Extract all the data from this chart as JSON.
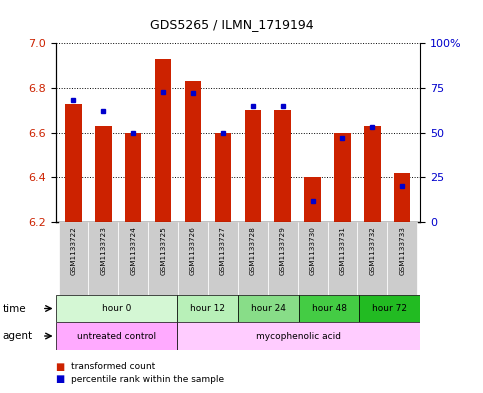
{
  "title": "GDS5265 / ILMN_1719194",
  "samples": [
    "GSM1133722",
    "GSM1133723",
    "GSM1133724",
    "GSM1133725",
    "GSM1133726",
    "GSM1133727",
    "GSM1133728",
    "GSM1133729",
    "GSM1133730",
    "GSM1133731",
    "GSM1133732",
    "GSM1133733"
  ],
  "red_values": [
    6.73,
    6.63,
    6.6,
    6.93,
    6.83,
    6.6,
    6.7,
    6.7,
    6.4,
    6.6,
    6.63,
    6.42
  ],
  "blue_percentiles": [
    68,
    62,
    50,
    73,
    72,
    50,
    65,
    65,
    12,
    47,
    53,
    20
  ],
  "y_min": 6.2,
  "y_max": 7.0,
  "y_ticks": [
    6.2,
    6.4,
    6.6,
    6.8,
    7.0
  ],
  "right_y_ticks": [
    0,
    25,
    50,
    75,
    100
  ],
  "right_y_labels": [
    "0",
    "25",
    "50",
    "75",
    "100%"
  ],
  "time_groups": [
    {
      "label": "hour 0",
      "start": 0,
      "end": 4,
      "color": "#d4f7d4"
    },
    {
      "label": "hour 12",
      "start": 4,
      "end": 6,
      "color": "#b8f0b8"
    },
    {
      "label": "hour 24",
      "start": 6,
      "end": 8,
      "color": "#88dd88"
    },
    {
      "label": "hour 48",
      "start": 8,
      "end": 10,
      "color": "#44cc44"
    },
    {
      "label": "hour 72",
      "start": 10,
      "end": 12,
      "color": "#22bb22"
    }
  ],
  "agent_groups": [
    {
      "label": "untreated control",
      "start": 0,
      "end": 4,
      "color": "#ffaaff"
    },
    {
      "label": "mycophenolic acid",
      "start": 4,
      "end": 12,
      "color": "#ffccff"
    }
  ],
  "bar_color": "#cc2200",
  "dot_color": "#0000cc",
  "sample_bg": "#cccccc"
}
